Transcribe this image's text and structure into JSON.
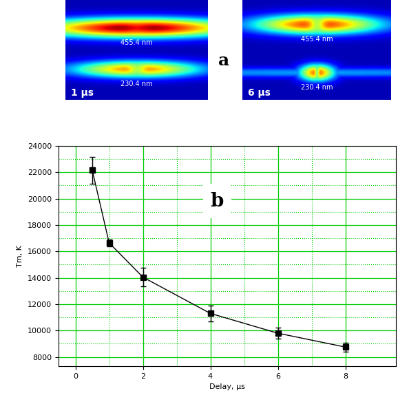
{
  "chart_data": {
    "type": "line",
    "x": [
      0.5,
      1,
      2,
      4,
      6,
      8
    ],
    "values": [
      22150,
      16650,
      14050,
      11300,
      9800,
      8750
    ],
    "errors": [
      1000,
      250,
      700,
      600,
      400,
      350
    ],
    "x_label": "Delay, µs",
    "y_label": "Tm, K",
    "xlim": [
      -0.5,
      9.5
    ],
    "xticks": [
      0,
      2,
      4,
      6,
      8
    ],
    "ylim": [
      7300,
      24000
    ],
    "yticks": [
      8000,
      10000,
      12000,
      14000,
      16000,
      18000,
      20000,
      22000,
      24000
    ],
    "grid": true,
    "color": "#000000",
    "marker": "square",
    "line_style": "solid",
    "annotations": [
      "b"
    ]
  },
  "image_panel": {
    "label": "a",
    "images": [
      {
        "time": "1 µs",
        "lines": [
          "455.4 nm",
          "230.4 nm"
        ]
      },
      {
        "time": "6 µs",
        "lines": [
          "455.4 nm",
          "230.4 nm"
        ]
      }
    ]
  }
}
